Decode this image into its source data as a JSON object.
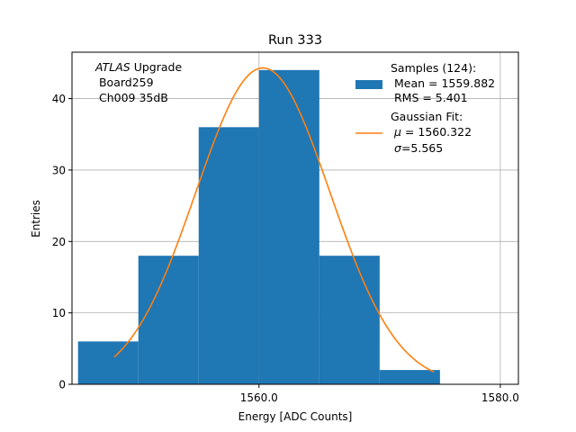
{
  "chart_data": {
    "type": "histogram",
    "title": "Run 333",
    "xlabel": "Energy [ADC Counts]",
    "ylabel": "Entries",
    "xlim": [
      1544.5,
      1581.5
    ],
    "ylim": [
      0,
      46.5
    ],
    "xticks": [
      1560.0,
      1580.0
    ],
    "xtick_labels": [
      "1560.0",
      "1580.0"
    ],
    "yticks": [
      0,
      10,
      20,
      30,
      40
    ],
    "ytick_labels": [
      "0",
      "10",
      "20",
      "30",
      "40"
    ],
    "grid": true,
    "bin_edges": [
      1545,
      1550,
      1555,
      1560,
      1565,
      1570,
      1575
    ],
    "counts": [
      6,
      18,
      36,
      44,
      18,
      2
    ],
    "bar_color": "#1f77b4",
    "fit": {
      "type": "gaussian",
      "mu": 1560.322,
      "sigma": 5.565,
      "amplitude": 44.3,
      "x_range": [
        1548,
        1574.5
      ],
      "color": "#ff7f0e"
    },
    "annotation": {
      "experiment": "ATLAS",
      "word": "Upgrade",
      "board": " Board259",
      "channel": " Ch009 35dB"
    },
    "legend": {
      "position": "top-right",
      "samples_title": "Samples (124):",
      "samples_mean": " Mean = 1559.882",
      "samples_rms": " RMS = 5.401",
      "fit_title": "Gaussian Fit:",
      "fit_mu_symbol": "μ",
      "fit_mu_value": " = 1560.322",
      "fit_sigma_symbol": "σ",
      "fit_sigma_value": "=5.565"
    }
  }
}
